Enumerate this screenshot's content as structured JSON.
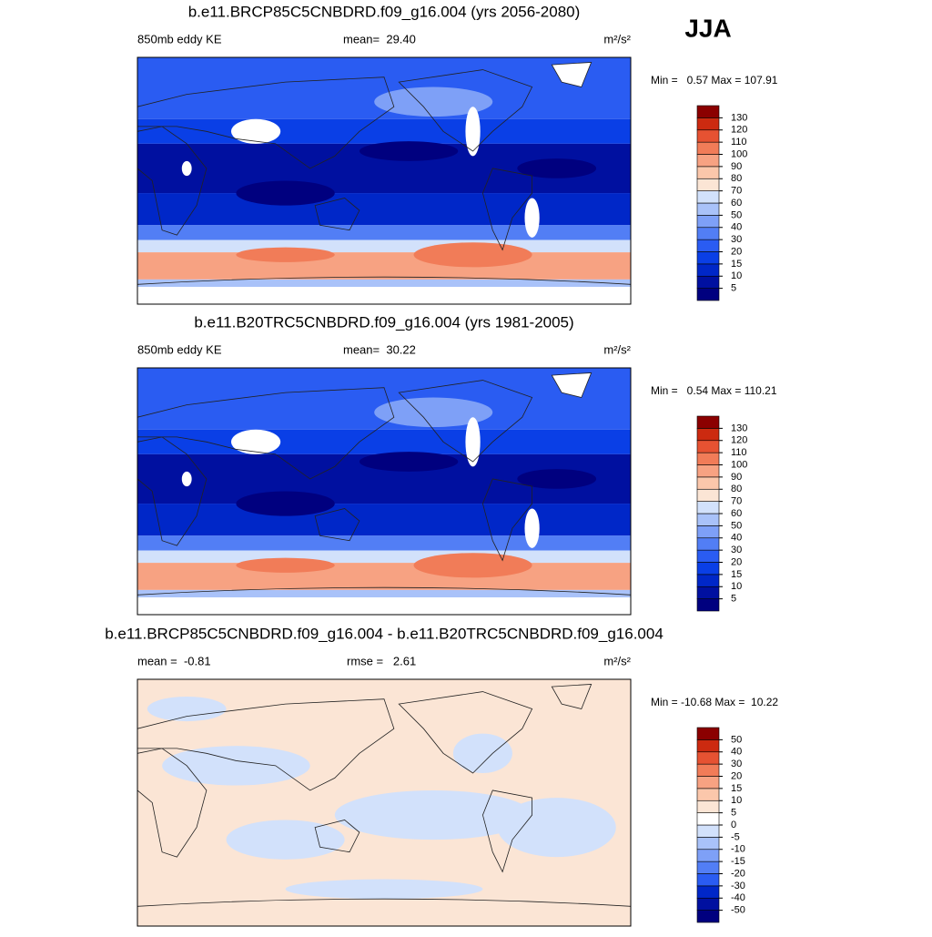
{
  "season": "JJA",
  "panels": [
    {
      "title": "b.e11.BRCP85C5CNBDRD.f09_g16.004 (yrs 2056-2080)",
      "left_label": "850mb eddy KE",
      "center_label": "mean=  29.40",
      "units": "m²/s²",
      "range_label": "Min =   0.57 Max = 107.91",
      "colorbar": {
        "levels": [
          5,
          10,
          15,
          20,
          30,
          40,
          50,
          60,
          70,
          80,
          90,
          100,
          110,
          120,
          130
        ],
        "colors": [
          "#00007f",
          "#0010a0",
          "#0027c8",
          "#0a3fe6",
          "#2a5cf2",
          "#527ef5",
          "#7ea0f7",
          "#a9c2f9",
          "#d2e1fb",
          "#fbe5d5",
          "#fbc7ab",
          "#f7a282",
          "#f17c58",
          "#e65232",
          "#cc2a10",
          "#8b0000"
        ]
      }
    },
    {
      "title": "b.e11.B20TRC5CNBDRD.f09_g16.004 (yrs 1981-2005)",
      "left_label": "850mb eddy KE",
      "center_label": "mean=  30.22",
      "units": "m²/s²",
      "range_label": "Min =   0.54 Max = 110.21",
      "colorbar": {
        "levels": [
          5,
          10,
          15,
          20,
          30,
          40,
          50,
          60,
          70,
          80,
          90,
          100,
          110,
          120,
          130
        ],
        "colors": [
          "#00007f",
          "#0010a0",
          "#0027c8",
          "#0a3fe6",
          "#2a5cf2",
          "#527ef5",
          "#7ea0f7",
          "#a9c2f9",
          "#d2e1fb",
          "#fbe5d5",
          "#fbc7ab",
          "#f7a282",
          "#f17c58",
          "#e65232",
          "#cc2a10",
          "#8b0000"
        ]
      }
    },
    {
      "title": "b.e11.BRCP85C5CNBDRD.f09_g16.004 - b.e11.B20TRC5CNBDRD.f09_g16.004",
      "left_label": "mean =  -0.81",
      "center_label": "rmse =   2.61",
      "units": "m²/s²",
      "range_label": "Min = -10.68 Max =  10.22",
      "colorbar": {
        "levels": [
          -50,
          -40,
          -30,
          -20,
          -15,
          -10,
          -5,
          0,
          5,
          10,
          15,
          20,
          30,
          40,
          50
        ],
        "colors": [
          "#00007f",
          "#0010a0",
          "#0027c8",
          "#2a5cf2",
          "#527ef5",
          "#7ea0f7",
          "#a9c2f9",
          "#d2e1fb",
          "#ffffff",
          "#fbe5d5",
          "#fbc7ab",
          "#f7a282",
          "#f17c58",
          "#e65232",
          "#cc2a10",
          "#8b0000"
        ]
      }
    }
  ]
}
